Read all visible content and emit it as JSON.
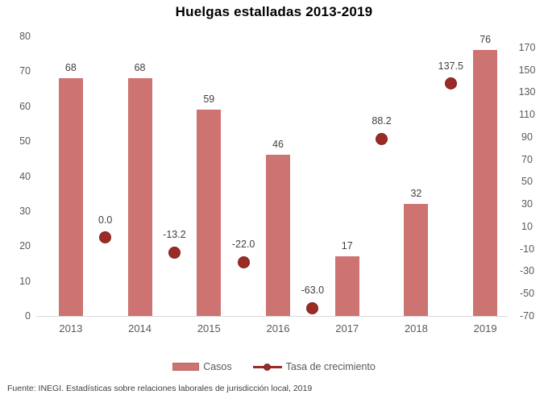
{
  "title": "Huelgas estalladas 2013-2019",
  "source": "Fuente: INEGI. Estadísticas sobre relaciones laborales de jurisdicción local, 2019",
  "colors": {
    "bar": "#CD7372",
    "bar_border": "#BB6664",
    "marker": "#9B2B26",
    "marker_border": "#7E211D",
    "axis_text": "#595959",
    "data_label": "#404040",
    "baseline": "#D9D9D9",
    "title_text": "#000000"
  },
  "chart_data": {
    "type": "bar",
    "subtype": "combo-bar-plus-point-series",
    "title": "Huelgas estalladas 2013-2019",
    "categories": [
      "2013",
      "2014",
      "2015",
      "2016",
      "2017",
      "2018",
      "2019"
    ],
    "series": [
      {
        "name": "Casos",
        "type": "bar",
        "axis": "left",
        "color": "#CD7372",
        "values": [
          68,
          68,
          59,
          46,
          17,
          32,
          76
        ],
        "labels": [
          "68",
          "68",
          "59",
          "46",
          "17",
          "32",
          "76"
        ]
      },
      {
        "name": "Tasa de crecimiento",
        "type": "point",
        "axis": "right",
        "position": "between-categories",
        "color": "#9B2B26",
        "values": [
          0.0,
          -13.2,
          -22.0,
          -63.0,
          88.2,
          137.5
        ],
        "labels": [
          "0.0",
          "-13.2",
          "-22.0",
          "-63.0",
          "88.2",
          "137.5"
        ]
      }
    ],
    "left_axis": {
      "min": 0,
      "max": 80,
      "step": 10,
      "tick_labels": [
        "0",
        "10",
        "20",
        "30",
        "40",
        "50",
        "60",
        "70",
        "80"
      ]
    },
    "right_axis": {
      "min": -70,
      "max": 180,
      "step": 20,
      "tick_labels": [
        "-70",
        "-50",
        "-30",
        "-10",
        "10",
        "30",
        "50",
        "70",
        "90",
        "110",
        "130",
        "150",
        "170"
      ]
    },
    "grid": false,
    "legend_position": "bottom"
  }
}
